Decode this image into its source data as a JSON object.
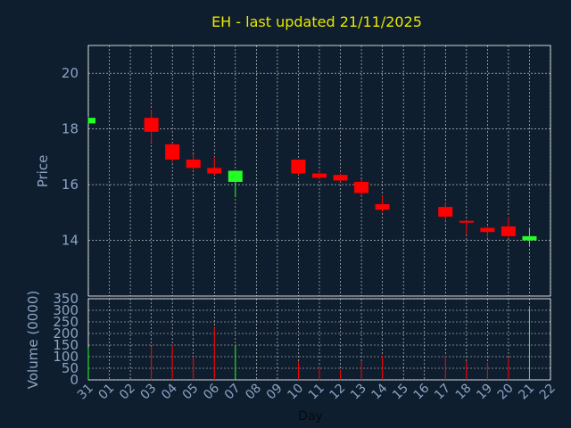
{
  "chart_data": {
    "type": "candlestick",
    "title": "EH - last updated 21/11/2025",
    "xlabel": "Day",
    "colors": {
      "up": "#22ff22",
      "down": "#ff0000",
      "background": "#0f1e2e",
      "grid": "#ffffff",
      "text": "#8aa4c4",
      "title": "#e8e800"
    },
    "grid": true,
    "x_ticks": [
      "31",
      "01",
      "02",
      "03",
      "04",
      "05",
      "06",
      "07",
      "08",
      "09",
      "10",
      "11",
      "12",
      "13",
      "14",
      "15",
      "16",
      "17",
      "18",
      "19",
      "20",
      "21",
      "22"
    ],
    "price_panel": {
      "ylabel": "Price",
      "ylim": [
        12.0,
        21.0
      ],
      "yticks": [
        "14",
        "16",
        "18",
        "20"
      ]
    },
    "volume_panel": {
      "ylabel": "Volume (0000)",
      "ylim": [
        0,
        350
      ],
      "yticks": [
        "0",
        "50",
        "100",
        "150",
        "200",
        "250",
        "300",
        "350"
      ]
    },
    "series": [
      {
        "day": "31",
        "open": 18.2,
        "high": 18.45,
        "low": 18.2,
        "close": 18.4,
        "volume": 140
      },
      {
        "day": "03",
        "open": 18.4,
        "high": 18.7,
        "low": 17.5,
        "close": 17.9,
        "volume": 145
      },
      {
        "day": "04",
        "open": 17.45,
        "high": 17.5,
        "low": 16.8,
        "close": 16.9,
        "volume": 150
      },
      {
        "day": "05",
        "open": 16.9,
        "high": 17.1,
        "low": 16.5,
        "close": 16.6,
        "volume": 100
      },
      {
        "day": "06",
        "open": 16.6,
        "high": 17.0,
        "low": 16.35,
        "close": 16.4,
        "volume": 225
      },
      {
        "day": "07",
        "open": 16.1,
        "high": 16.5,
        "low": 15.55,
        "close": 16.5,
        "volume": 150
      },
      {
        "day": "10",
        "open": 16.9,
        "high": 16.9,
        "low": 16.35,
        "close": 16.4,
        "volume": 80
      },
      {
        "day": "11",
        "open": 16.4,
        "high": 16.5,
        "low": 16.2,
        "close": 16.25,
        "volume": 55
      },
      {
        "day": "12",
        "open": 16.35,
        "high": 16.4,
        "low": 16.1,
        "close": 16.15,
        "volume": 45
      },
      {
        "day": "13",
        "open": 16.1,
        "high": 16.2,
        "low": 15.6,
        "close": 15.7,
        "volume": 80
      },
      {
        "day": "14",
        "open": 15.3,
        "high": 15.6,
        "low": 15.0,
        "close": 15.1,
        "volume": 105
      },
      {
        "day": "17",
        "open": 15.2,
        "high": 15.35,
        "low": 14.7,
        "close": 14.85,
        "volume": 105
      },
      {
        "day": "18",
        "open": 14.7,
        "high": 14.75,
        "low": 14.2,
        "close": 14.65,
        "volume": 80
      },
      {
        "day": "19",
        "open": 14.45,
        "high": 14.5,
        "low": 14.1,
        "close": 14.3,
        "volume": 75
      },
      {
        "day": "20",
        "open": 14.5,
        "high": 14.85,
        "low": 14.1,
        "close": 14.15,
        "volume": 95
      },
      {
        "day": "21",
        "open": 14.0,
        "high": 14.45,
        "low": 13.8,
        "close": 14.15,
        "volume": 310
      }
    ]
  }
}
